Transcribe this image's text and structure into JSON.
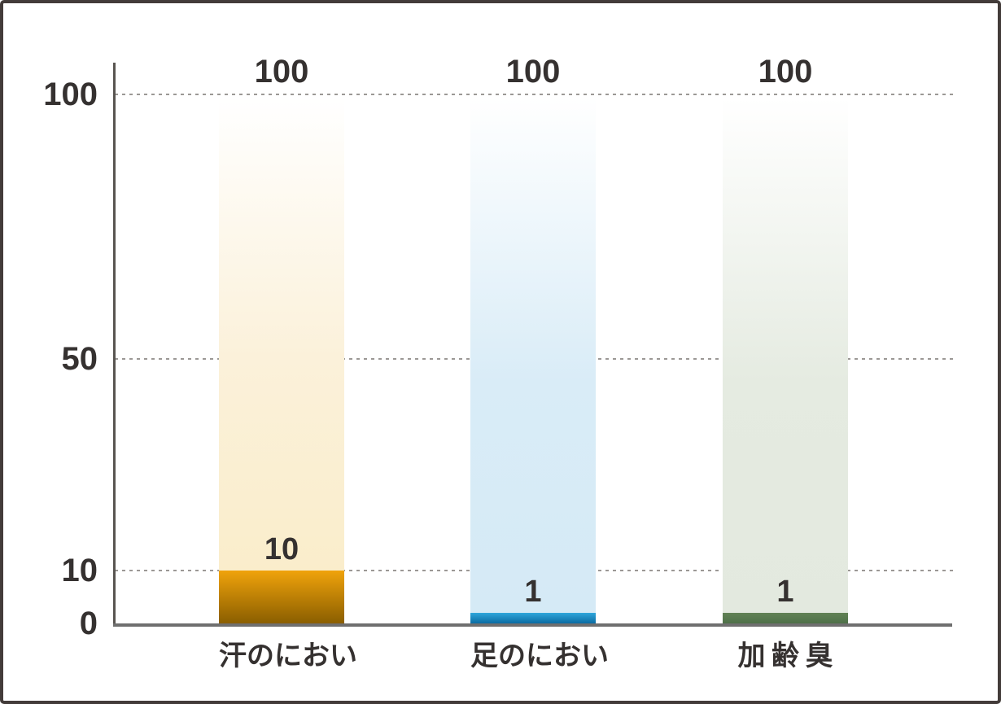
{
  "chart_data": {
    "type": "bar",
    "title": "",
    "xlabel": "",
    "ylabel": "",
    "categories": [
      "汗のにおい",
      "足のにおい",
      "加齢臭"
    ],
    "series": [
      {
        "role": "background-total",
        "values": [
          100,
          100,
          100
        ]
      },
      {
        "role": "highlight-remaining",
        "values": [
          10,
          1,
          1
        ]
      }
    ],
    "data_labels_top": [
      "100",
      "100",
      "100"
    ],
    "data_labels_highlight": [
      "10",
      "1",
      "1"
    ],
    "ylim": [
      0,
      100
    ],
    "yticks": [
      0,
      10,
      50,
      100
    ],
    "ytick_labels": [
      "0",
      "10",
      "50",
      "100"
    ],
    "grid": "horizontal-dotted",
    "legend": "none",
    "colors": {
      "solid_gradients": [
        [
          "#f0a30b",
          "#8a5e00"
        ],
        [
          "#2fa6db",
          "#0a6ca3"
        ],
        [
          "#628256",
          "#4e7048"
        ]
      ],
      "faded_gradients": [
        [
          "#ffffff",
          "#fbf1da",
          "#faedcb"
        ],
        [
          "#ffffff",
          "#d9ecf7",
          "#d5eaf6"
        ],
        [
          "#ffffff",
          "#e5ebe1",
          "#e3e9df"
        ]
      ],
      "axis_text": "#353130",
      "yaxis_line": "#595551",
      "baseline": "#6f6f6f",
      "gridline": "#9b9895",
      "frame_border": "#433c3a",
      "background": "#ffffff"
    }
  }
}
